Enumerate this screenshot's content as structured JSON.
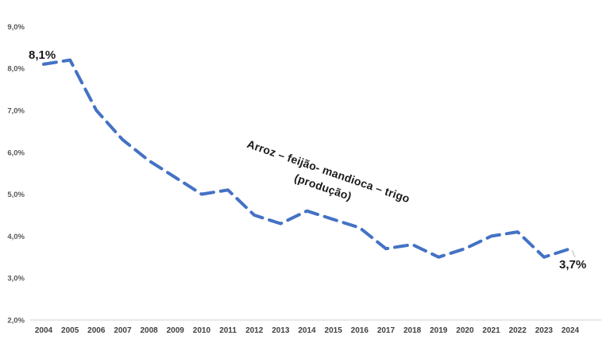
{
  "chart_data": {
    "type": "line",
    "title": "",
    "categories": [
      "2004",
      "2005",
      "2006",
      "2007",
      "2008",
      "2009",
      "2010",
      "2011",
      "2012",
      "2013",
      "2014",
      "2015",
      "2016",
      "2017",
      "2018",
      "2019",
      "2020",
      "2021",
      "2022",
      "2023",
      "2024"
    ],
    "series": [
      {
        "name": "Arroz – feijão- mandioca – trigo (produção)",
        "values": [
          8.1,
          8.2,
          7.0,
          6.3,
          5.8,
          5.4,
          5.0,
          5.1,
          4.5,
          4.3,
          4.6,
          4.4,
          4.2,
          3.7,
          3.8,
          3.5,
          3.7,
          4.0,
          4.1,
          3.5,
          3.7
        ]
      }
    ],
    "ylim": [
      2.0,
      9.0
    ],
    "y_tick_labels": [
      "9,0%",
      "8,0%",
      "7,0%",
      "6,0%",
      "5,0%",
      "4,0%",
      "3,0%",
      "2,0%"
    ],
    "y_tick_values": [
      9,
      8,
      7,
      6,
      5,
      4,
      3,
      2
    ],
    "grid": false,
    "legend_position": "none",
    "line_color": "#4472C4",
    "line_style": "dashed",
    "axis_line_color": "#D9D9D9",
    "y_tick_color": "#595959",
    "x_tick_color": "#404040",
    "annotations": {
      "first_point_label": "8,1%",
      "last_point_label": "3,7%",
      "series_label_line1": "Arroz – feijão- mandioca – trigo",
      "series_label_line2": "(produção)"
    }
  }
}
